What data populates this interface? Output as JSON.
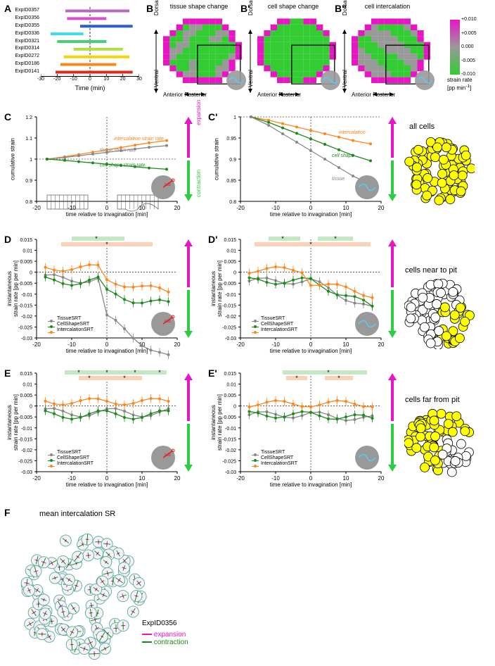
{
  "colors": {
    "magenta": "#e815c5",
    "green": "#2ecc40",
    "gray": "#888888",
    "darkgreen": "#1a8a1a",
    "orange": "#ff851b",
    "yellow": "#ffff00",
    "lightgreen_bg": "#c4e8c4",
    "lightorange_bg": "#f9d2b8",
    "heatmap_neg": "#33cc33",
    "heatmap_mid": "#999999",
    "heatmap_pos": "#e815c5"
  },
  "panelA": {
    "label": "A",
    "xaxis": "Time (min)",
    "xticks": [
      -30,
      -20,
      -10,
      0,
      10,
      20,
      30
    ],
    "series": [
      {
        "id": "ExpID0357",
        "start": -15,
        "end": 24,
        "color": "#b869c4"
      },
      {
        "id": "ExpID0356",
        "start": -14,
        "end": 10,
        "color": "#d94fc7"
      },
      {
        "id": "ExpID0355",
        "start": -6,
        "end": 26,
        "color": "#2b5fd1"
      },
      {
        "id": "ExpID0336",
        "start": -24,
        "end": -4,
        "color": "#3fd9f0"
      },
      {
        "id": "ExpID0321",
        "start": -20,
        "end": 10,
        "color": "#45d17a"
      },
      {
        "id": "ExpID0314",
        "start": -10,
        "end": 20,
        "color": "#b0e040"
      },
      {
        "id": "ExpID0272",
        "start": -16,
        "end": 24,
        "color": "#f2d40f"
      },
      {
        "id": "ExpID0186",
        "start": -18,
        "end": 16,
        "color": "#f48a1c"
      },
      {
        "id": "ExpID0141",
        "start": -21,
        "end": 26,
        "color": "#e0281c"
      }
    ]
  },
  "panelB": {
    "labels": [
      "B",
      "B'",
      "B''"
    ],
    "titles": [
      "tissue shape change",
      "cell shape change",
      "cell intercalation"
    ],
    "axis_v": [
      "Dorsal",
      "Ventral"
    ],
    "axis_h": [
      "Anterior",
      "Posterior"
    ],
    "colorbar": {
      "label": "strain rate\n[pp min⁻¹]",
      "ticks": [
        "+0.010",
        "+0.005",
        "0.000",
        "-0.005",
        "-0.010"
      ]
    }
  },
  "panelC": {
    "label_left": "C",
    "label_right": "C'",
    "ylabel": "cumulative strain",
    "xlabel": "time relative to invagination [min]",
    "xticks": [
      -20,
      -10,
      0,
      10,
      20
    ],
    "yticks_left": [
      0.8,
      0.9,
      1.0,
      1.1,
      1.2
    ],
    "yticks_right": [
      0.8,
      0.85,
      0.9,
      0.95,
      1.0
    ],
    "annotations_left": [
      "intercalation strain rate",
      "tissue strain rate",
      "cell shape strain rate"
    ],
    "annotations_right": [
      "intercalation",
      "cell shape",
      "tissue"
    ],
    "side_up": "expansion",
    "side_dn": "contraction",
    "side_label": "all cells"
  },
  "panelDE_shared": {
    "ylabel": "instantaneous\nstrain rate [pp per min]",
    "xlabel": "time relative to invagination [min]",
    "xticks": [
      -20,
      -10,
      0,
      10,
      20
    ],
    "yticks": [
      -0.03,
      -0.025,
      -0.02,
      -0.015,
      -0.01,
      -0.005,
      0,
      0.005,
      0.01,
      0.015
    ],
    "legend": [
      {
        "label": "TissueSRT",
        "color": "#888888"
      },
      {
        "label": "CellShapeSRT",
        "color": "#1a8a1a"
      },
      {
        "label": "IntercalationSRT",
        "color": "#ff851b"
      }
    ]
  },
  "panelD": {
    "label_left": "D",
    "label_right": "D'",
    "side_label": "cells near to pit"
  },
  "panelE": {
    "label_left": "E",
    "label_right": "E'",
    "side_label": "cells far from pit"
  },
  "panelF": {
    "label": "F",
    "title": "mean intercalation SR",
    "exp": "ExpID0356",
    "leg_exp": "expansion",
    "leg_con": "contraction"
  },
  "rad": "rad"
}
